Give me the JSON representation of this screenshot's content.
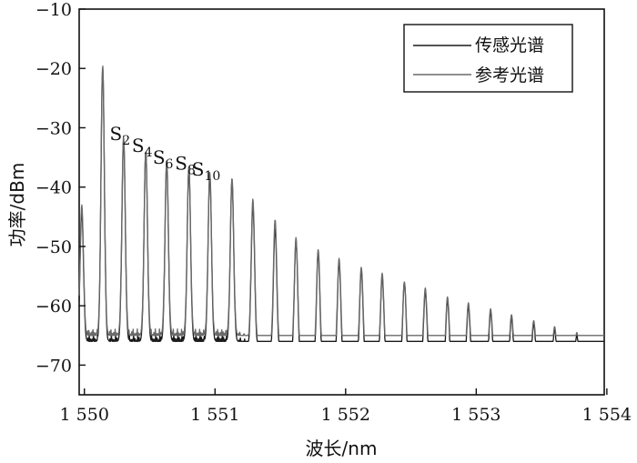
{
  "chart_data": {
    "type": "line",
    "xlabel": "波长/nm",
    "ylabel": "功率/dBm",
    "xlim": [
      1549.96,
      1553.98
    ],
    "ylim": [
      -75,
      -10
    ],
    "xticks": [
      {
        "value": 1550,
        "label": "1 550"
      },
      {
        "value": 1551,
        "label": "1 551"
      },
      {
        "value": 1552,
        "label": "1 552"
      },
      {
        "value": 1553,
        "label": "1 553"
      },
      {
        "value": 1554,
        "label": "1 554"
      }
    ],
    "yticks": [
      {
        "value": -10,
        "label": "−10"
      },
      {
        "value": -20,
        "label": "−20"
      },
      {
        "value": -30,
        "label": "−30"
      },
      {
        "value": -40,
        "label": "−40"
      },
      {
        "value": -50,
        "label": "−50"
      },
      {
        "value": -60,
        "label": "−60"
      },
      {
        "value": -70,
        "label": "−70"
      }
    ],
    "grid": false,
    "legend_position": "top-right",
    "series": [
      {
        "name": "传感光谱",
        "color": "#1a1a1a",
        "peak_wavelengths": [
          1549.98,
          1550.14,
          1550.3,
          1550.47,
          1550.63,
          1550.8,
          1550.96,
          1551.13,
          1551.29,
          1551.46,
          1551.62,
          1551.79,
          1551.95,
          1552.12,
          1552.28,
          1552.45,
          1552.61,
          1552.78,
          1552.94,
          1553.11,
          1553.27,
          1553.44,
          1553.6,
          1553.77,
          1553.93
        ],
        "peak_powers": [
          -45,
          -21,
          -33,
          -35,
          -37,
          -38,
          -39,
          -40,
          -44,
          -48,
          -50,
          -52,
          -53.5,
          -55,
          -56,
          -57,
          -58.5,
          -60,
          -61,
          -62,
          -63,
          -64,
          -65,
          -66,
          -67
        ],
        "baseline_powers": [
          -66,
          -66,
          -66,
          -66,
          -66,
          -66,
          -66,
          -66,
          -67,
          -68,
          -69,
          -70,
          -70,
          -70,
          -70,
          -70.5,
          -70.5,
          -71,
          -71,
          -71,
          -71,
          -71,
          -71,
          -71,
          -71
        ]
      },
      {
        "name": "参考光谱",
        "color": "#6a6a6a",
        "peak_wavelengths": [
          1549.98,
          1550.14,
          1550.3,
          1550.47,
          1550.63,
          1550.8,
          1550.96,
          1551.13,
          1551.29,
          1551.46,
          1551.62,
          1551.79,
          1551.95,
          1552.12,
          1552.28,
          1552.45,
          1552.61,
          1552.78,
          1552.94,
          1553.11,
          1553.27,
          1553.44,
          1553.6,
          1553.77,
          1553.93
        ],
        "peak_powers": [
          -44,
          -20.5,
          -32.5,
          -35,
          -36.5,
          -37.5,
          -38.5,
          -39.5,
          -43,
          -46.5,
          -49.5,
          -51.5,
          -53,
          -54.5,
          -55.5,
          -57,
          -58,
          -59.5,
          -60.5,
          -61.5,
          -62.5,
          -63.5,
          -64.5,
          -65.5,
          -66.5
        ],
        "baseline_powers": [
          -65,
          -65,
          -65,
          -65,
          -65,
          -65,
          -65,
          -65,
          -66,
          -67,
          -68,
          -68.5,
          -68.5,
          -68.5,
          -69,
          -69,
          -69,
          -69.5,
          -69.5,
          -69.5,
          -69.5,
          -69.5,
          -70,
          -70,
          -70
        ]
      }
    ],
    "annotations": [
      {
        "base": "S",
        "sub": "2",
        "x": 1550.3
      },
      {
        "base": "S",
        "sub": "4",
        "x": 1550.47
      },
      {
        "base": "S",
        "sub": "6",
        "x": 1550.63
      },
      {
        "base": "S",
        "sub": "8",
        "x": 1550.8
      },
      {
        "base": "S",
        "sub": "10",
        "x": 1550.96
      }
    ]
  }
}
